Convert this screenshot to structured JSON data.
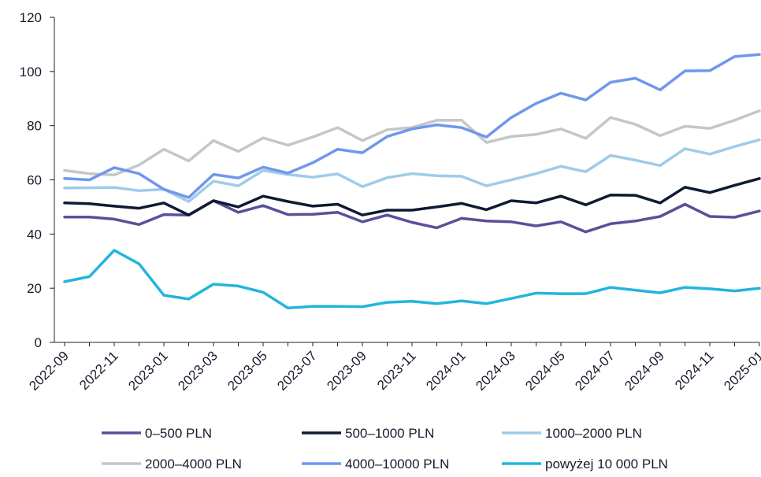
{
  "chart_data": {
    "type": "line",
    "title": "",
    "xlabel": "",
    "ylabel": "",
    "ylim": [
      0,
      120
    ],
    "yticks": [
      0,
      20,
      40,
      60,
      80,
      100,
      120
    ],
    "grid": false,
    "legend_position": "bottom",
    "x": [
      "2022-09",
      "2022-10",
      "2022-11",
      "2022-12",
      "2023-01",
      "2023-02",
      "2023-03",
      "2023-04",
      "2023-05",
      "2023-06",
      "2023-07",
      "2023-08",
      "2023-09",
      "2023-10",
      "2023-11",
      "2023-12",
      "2024-01",
      "2024-02",
      "2024-03",
      "2024-04",
      "2024-05",
      "2024-06",
      "2024-07",
      "2024-08",
      "2024-09",
      "2024-10",
      "2024-11",
      "2024-12",
      "2025-01"
    ],
    "x_tick_labels": [
      "2022-09",
      "2022-11",
      "2023-01",
      "2023-03",
      "2023-05",
      "2023-07",
      "2023-09",
      "2023-11",
      "2024-01",
      "2024-03",
      "2024-05",
      "2024-07",
      "2024-09",
      "2024-11",
      "2025-01"
    ],
    "series": [
      {
        "name": "0–500 PLN",
        "color": "#5b4f9a",
        "values": [
          46.3,
          46.3,
          45.5,
          43.5,
          47.2,
          47.0,
          52.3,
          48.0,
          50.5,
          47.2,
          47.3,
          48.0,
          44.5,
          47.0,
          44.3,
          42.3,
          45.8,
          44.8,
          44.5,
          43.0,
          44.5,
          40.8,
          43.8,
          44.8,
          46.5,
          51.0,
          46.5,
          46.2,
          48.5
        ]
      },
      {
        "name": "500–1000 PLN",
        "color": "#0f1a33",
        "values": [
          51.5,
          51.2,
          50.3,
          49.5,
          51.5,
          47.0,
          52.3,
          50.0,
          54.0,
          52.0,
          50.3,
          51.0,
          47.0,
          48.8,
          48.8,
          50.0,
          51.3,
          49.0,
          52.3,
          51.5,
          54.0,
          50.8,
          54.4,
          54.3,
          51.5,
          57.3,
          55.3,
          58.0,
          60.5
        ]
      },
      {
        "name": "1000–2000 PLN",
        "color": "#9fcbea",
        "values": [
          57.0,
          57.1,
          57.2,
          56.0,
          56.5,
          52.0,
          59.5,
          57.8,
          63.5,
          62.0,
          61.0,
          62.2,
          57.5,
          60.8,
          62.3,
          61.5,
          61.3,
          57.8,
          60.0,
          62.3,
          65.0,
          63.0,
          69.0,
          67.3,
          65.3,
          71.5,
          69.5,
          72.3,
          74.8
        ]
      },
      {
        "name": "2000–4000 PLN",
        "color": "#c4c6c8",
        "values": [
          63.5,
          62.3,
          61.8,
          65.5,
          71.3,
          67.0,
          74.5,
          70.5,
          75.5,
          72.8,
          75.8,
          79.3,
          74.5,
          78.5,
          79.3,
          82.0,
          82.0,
          73.8,
          76.0,
          76.8,
          78.8,
          75.3,
          83.0,
          80.5,
          76.3,
          79.8,
          79.0,
          82.0,
          85.5
        ]
      },
      {
        "name": "4000–10000 PLN",
        "color": "#6f97ec",
        "values": [
          60.5,
          60.0,
          64.5,
          62.3,
          56.5,
          53.5,
          62.0,
          60.7,
          64.7,
          62.5,
          66.3,
          71.3,
          70.0,
          76.0,
          78.8,
          80.3,
          79.3,
          75.8,
          83.0,
          88.2,
          92.0,
          89.5,
          96.0,
          97.5,
          93.2,
          100.2,
          100.3,
          105.5,
          106.3
        ]
      },
      {
        "name": "powyżej 10 000 PLN",
        "color": "#22b5dd",
        "values": [
          22.4,
          24.3,
          34.0,
          29.0,
          17.4,
          16.0,
          21.5,
          20.8,
          18.5,
          12.7,
          13.3,
          13.3,
          13.2,
          14.8,
          15.2,
          14.3,
          15.3,
          14.3,
          16.2,
          18.2,
          18.0,
          18.0,
          20.3,
          19.3,
          18.3,
          20.3,
          19.8,
          19.0,
          20.0
        ]
      }
    ]
  }
}
